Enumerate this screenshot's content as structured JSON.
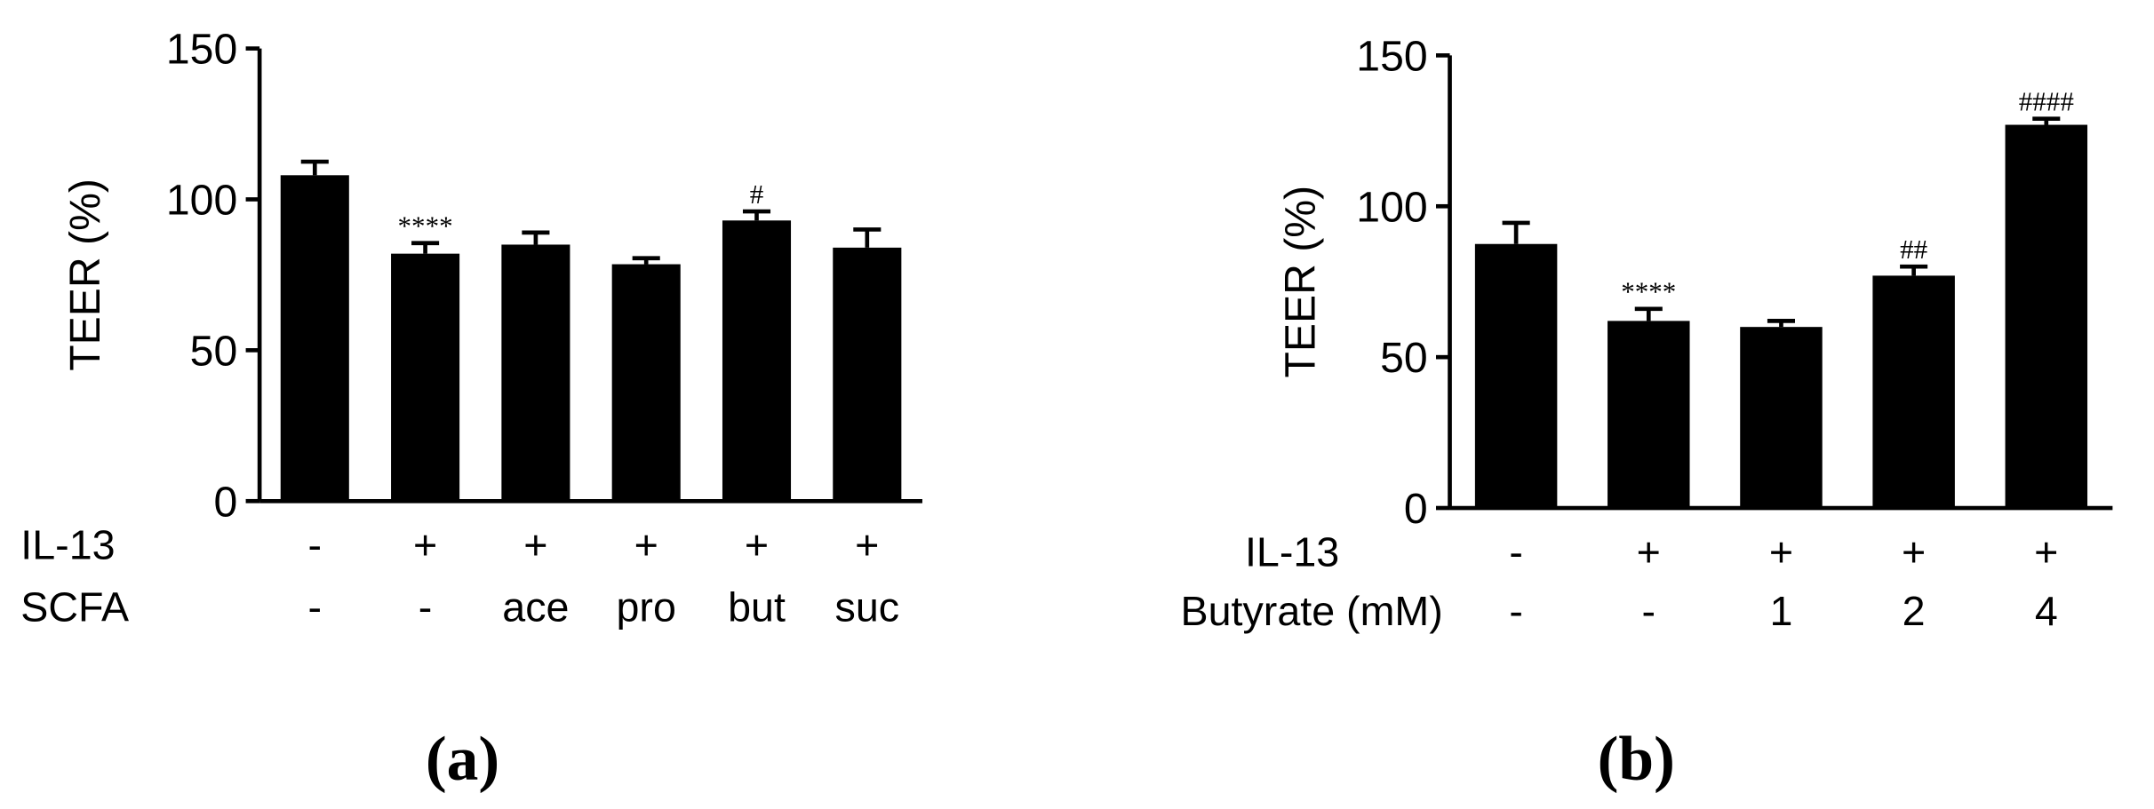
{
  "chart_data": [
    {
      "type": "bar",
      "y_label": "TEER (%)",
      "caption": "(a)",
      "color": "#000000",
      "ylim": [
        0,
        150
      ],
      "yticks": [
        0,
        50,
        100,
        150
      ],
      "conditions": [
        {
          "label": "IL-13",
          "levels": [
            "-",
            "+",
            "+",
            "+",
            "+",
            "+"
          ]
        },
        {
          "label": "SCFA",
          "levels": [
            "-",
            "-",
            "ace",
            "pro",
            "but",
            "suc"
          ]
        }
      ],
      "values": [
        108,
        82,
        85,
        78.5,
        93,
        84
      ],
      "errors": [
        4.5,
        3.5,
        4,
        2,
        3,
        6
      ],
      "annotations": [
        null,
        "****",
        null,
        null,
        "#",
        null
      ]
    },
    {
      "type": "bar",
      "y_label": "TEER (%)",
      "caption": "(b)",
      "color": "#000000",
      "ylim": [
        0,
        150
      ],
      "yticks": [
        0,
        50,
        100,
        150
      ],
      "conditions": [
        {
          "label": "IL-13",
          "levels": [
            "-",
            "+",
            "+",
            "+",
            "+"
          ]
        },
        {
          "label": "Butyrate (mM)",
          "levels": [
            "-",
            "-",
            "1",
            "2",
            "4"
          ]
        }
      ],
      "values": [
        87.5,
        62,
        60,
        77,
        127
      ],
      "errors": [
        7,
        4,
        2,
        3,
        2
      ],
      "annotations": [
        null,
        "****",
        null,
        "##",
        "####"
      ]
    }
  ]
}
